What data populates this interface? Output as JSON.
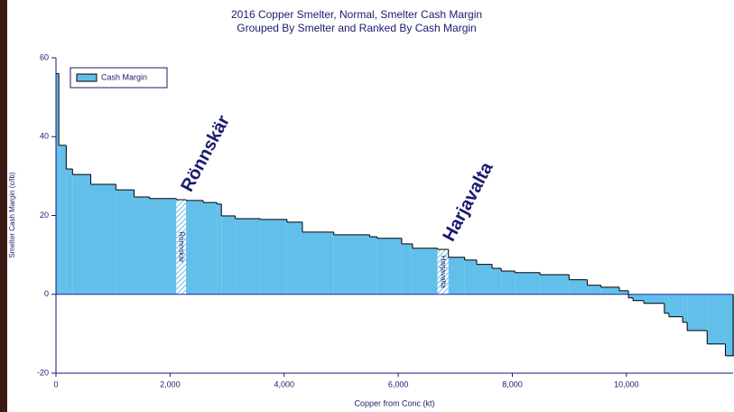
{
  "chart_data": {
    "type": "cost-curve",
    "title": "2016 Copper Smelter, Normal, Smelter Cash Margin",
    "subtitle": "Grouped By Smelter and Ranked By Cash Margin",
    "x_label": "Copper from Conc (kt)",
    "y_label": "Smelter Cash Margin (c/lb)",
    "categories": [
      null,
      null,
      null,
      null,
      null,
      null,
      null,
      null,
      "Rönnskär",
      null,
      null,
      null,
      null,
      null,
      null,
      null,
      null,
      null,
      null,
      null,
      null,
      null,
      "Harjavalta",
      null,
      null,
      null,
      null,
      null,
      null,
      null,
      null,
      null,
      null,
      null,
      null,
      null,
      null,
      null,
      null,
      null,
      null,
      null,
      null
    ],
    "series": [
      {
        "name": "Cash Margin",
        "color": "#62bfea",
        "widths": [
          50,
          130,
          110,
          320,
          440,
          320,
          270,
          470,
          170,
          300,
          240,
          80,
          240,
          440,
          470,
          270,
          550,
          630,
          130,
          430,
          190,
          440,
          190,
          285,
          210,
          270,
          160,
          240,
          440,
          510,
          320,
          240,
          320,
          160,
          80,
          190,
          360,
          80,
          240,
          80,
          350,
          320,
          160
        ],
        "values": [
          56,
          37.8,
          31.8,
          30.4,
          27.9,
          26.5,
          24.7,
          24.3,
          24.0,
          23.8,
          23.3,
          22.9,
          19.9,
          19.2,
          19.0,
          18.3,
          15.8,
          15.1,
          14.6,
          14.2,
          12.8,
          11.7,
          11.4,
          9.4,
          8.7,
          7.6,
          6.6,
          5.9,
          5.5,
          5.0,
          3.7,
          2.3,
          1.8,
          0.9,
          -0.9,
          -1.6,
          -2.3,
          -4.8,
          -5.7,
          -7.1,
          -9.2,
          -12.6,
          -15.6
        ]
      }
    ],
    "xlim": [
      0,
      11870
    ],
    "xticks": [
      0,
      {
        "value": 2000,
        "label": "2,000"
      },
      {
        "value": 4000,
        "label": "4,000"
      },
      {
        "value": 6000,
        "label": "6,000"
      },
      {
        "value": 8000,
        "label": "8,000"
      },
      {
        "value": 10000,
        "label": "10,000"
      }
    ],
    "ylim": [
      -20,
      60
    ],
    "yticks": [
      -20,
      0,
      20,
      40,
      60
    ],
    "legend": "top-left"
  }
}
